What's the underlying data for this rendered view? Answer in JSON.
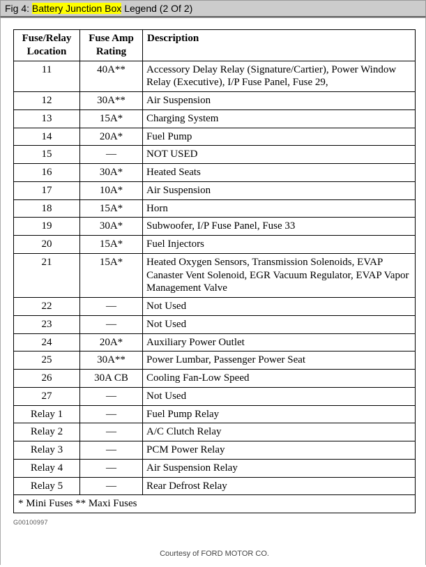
{
  "title": {
    "prefix": "Fig 4: ",
    "highlighted": "Battery Junction Box",
    "suffix": " Legend (2 Of 2)"
  },
  "table": {
    "headers": {
      "location": "Fuse/Relay Location",
      "rating": "Fuse Amp Rating",
      "description": "Description"
    },
    "rows": [
      {
        "loc": "11",
        "amp": "40A**",
        "desc": "Accessory Delay Relay (Signature/Cartier), Power Window Relay (Executive), I/P Fuse Panel, Fuse 29,"
      },
      {
        "loc": "12",
        "amp": "30A**",
        "desc": "Air Suspension"
      },
      {
        "loc": "13",
        "amp": "15A*",
        "desc": "Charging System"
      },
      {
        "loc": "14",
        "amp": "20A*",
        "desc": "Fuel Pump"
      },
      {
        "loc": "15",
        "amp": "—",
        "desc": "NOT USED"
      },
      {
        "loc": "16",
        "amp": "30A*",
        "desc": "Heated Seats"
      },
      {
        "loc": "17",
        "amp": "10A*",
        "desc": "Air Suspension"
      },
      {
        "loc": "18",
        "amp": "15A*",
        "desc": "Horn"
      },
      {
        "loc": "19",
        "amp": "30A*",
        "desc": "Subwoofer, I/P Fuse Panel, Fuse 33"
      },
      {
        "loc": "20",
        "amp": "15A*",
        "desc": "Fuel Injectors"
      },
      {
        "loc": "21",
        "amp": "15A*",
        "desc": "Heated Oxygen Sensors, Transmission Solenoids, EVAP Canaster Vent Solenoid, EGR Vacuum Regulator, EVAP Vapor Management Valve"
      },
      {
        "loc": "22",
        "amp": "—",
        "desc": "Not Used"
      },
      {
        "loc": "23",
        "amp": "—",
        "desc": "Not Used"
      },
      {
        "loc": "24",
        "amp": "20A*",
        "desc": "Auxiliary Power Outlet"
      },
      {
        "loc": "25",
        "amp": "30A**",
        "desc": "Power Lumbar, Passenger Power Seat"
      },
      {
        "loc": "26",
        "amp": "30A CB",
        "desc": "Cooling Fan-Low Speed"
      },
      {
        "loc": "27",
        "amp": "—",
        "desc": "Not Used"
      },
      {
        "loc": "Relay 1",
        "amp": "—",
        "desc": "Fuel Pump Relay"
      },
      {
        "loc": "Relay 2",
        "amp": "—",
        "desc": "A/C Clutch Relay"
      },
      {
        "loc": "Relay 3",
        "amp": "—",
        "desc": "PCM Power Relay"
      },
      {
        "loc": "Relay 4",
        "amp": "—",
        "desc": "Air Suspension Relay"
      },
      {
        "loc": "Relay 5",
        "amp": "—",
        "desc": "Rear Defrost Relay"
      }
    ],
    "footnote": "* Mini Fuses ** Maxi Fuses"
  },
  "doc_id": "G00100997",
  "courtesy": "Courtesy of FORD MOTOR CO."
}
